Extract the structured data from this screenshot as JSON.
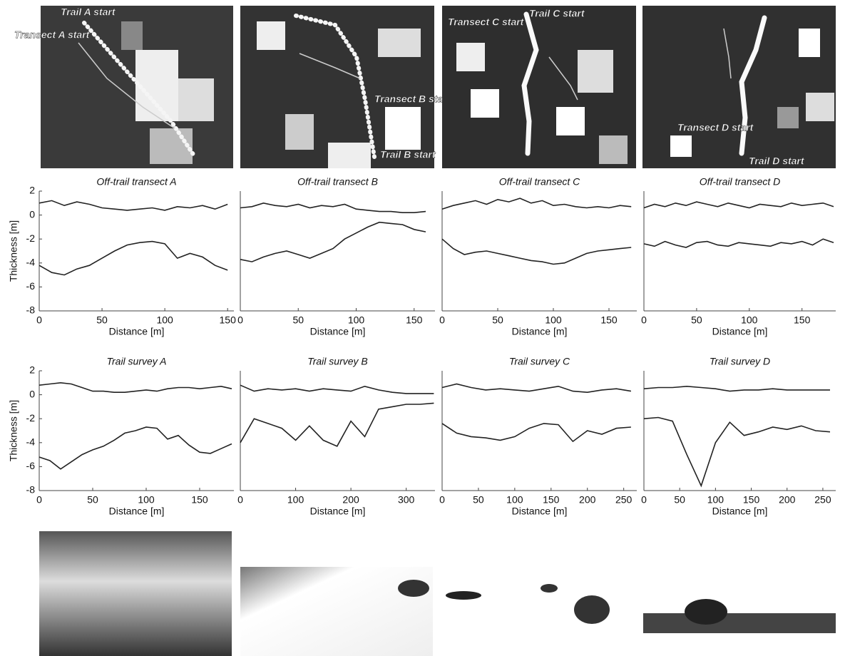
{
  "maps": [
    {
      "labels": [
        "Trail A start",
        "Transect A start"
      ]
    },
    {
      "labels": [
        "Transect B start",
        "Trail B start"
      ]
    },
    {
      "labels": [
        "Transect C start",
        "Trail C start"
      ]
    },
    {
      "labels": [
        "Transect D start",
        "Trail D start"
      ]
    }
  ],
  "chart_data": [
    {
      "type": "line",
      "title": "Off-trail transect A",
      "x_label": "Distance [m]",
      "y_label": "Thickness [m]",
      "x": [
        0,
        10,
        20,
        30,
        40,
        50,
        60,
        70,
        80,
        90,
        100,
        110,
        120,
        130,
        140,
        150
      ],
      "series": [
        {
          "color": "#222222",
          "values": [
            1,
            1.2,
            0.8,
            1.1,
            0.9,
            0.6,
            0.5,
            0.4,
            0.5,
            0.6,
            0.4,
            0.7,
            0.6,
            0.8,
            0.5,
            0.9
          ]
        },
        {
          "color": "#222222",
          "values": [
            -4.2,
            -4.8,
            -5,
            -4.5,
            -4.2,
            -3.6,
            -3,
            -2.5,
            -2.3,
            -2.2,
            -2.4,
            -3.6,
            -3.2,
            -3.5,
            -4.2,
            -4.6
          ]
        }
      ],
      "xlim": [
        0,
        155
      ],
      "xticks": [
        0,
        50,
        100,
        150
      ],
      "ylim": [
        -8,
        2
      ],
      "yticks": [
        2,
        0,
        -2,
        -4,
        -6,
        -8
      ]
    },
    {
      "type": "line",
      "title": "Off-trail transect B",
      "x_label": "Distance [m]",
      "x": [
        0,
        10,
        20,
        30,
        40,
        50,
        60,
        70,
        80,
        90,
        100,
        110,
        120,
        130,
        140,
        150,
        160
      ],
      "series": [
        {
          "color": "#222222",
          "values": [
            0.6,
            0.7,
            1,
            0.8,
            0.7,
            0.9,
            0.6,
            0.8,
            0.7,
            0.9,
            0.5,
            0.4,
            0.3,
            0.3,
            0.2,
            0.2,
            0.3
          ]
        },
        {
          "color": "#222222",
          "values": [
            -3.7,
            -3.9,
            -3.5,
            -3.2,
            -3,
            -3.3,
            -3.6,
            -3.2,
            -2.8,
            -2,
            -1.5,
            -1,
            -0.6,
            -0.7,
            -0.8,
            -1.2,
            -1.4
          ]
        }
      ],
      "xlim": [
        0,
        168
      ],
      "xticks": [
        0,
        50,
        100,
        150
      ],
      "ylim": [
        -8,
        2
      ]
    },
    {
      "type": "line",
      "title": "Off-trail transect C",
      "x_label": "Distance [m]",
      "x": [
        0,
        10,
        20,
        30,
        40,
        50,
        60,
        70,
        80,
        90,
        100,
        110,
        120,
        130,
        140,
        150,
        160,
        170
      ],
      "series": [
        {
          "color": "#222222",
          "values": [
            0.5,
            0.8,
            1,
            1.2,
            0.9,
            1.3,
            1.1,
            1.4,
            1,
            1.2,
            0.8,
            0.9,
            0.7,
            0.6,
            0.7,
            0.6,
            0.8,
            0.7
          ]
        },
        {
          "color": "#222222",
          "values": [
            -2,
            -2.8,
            -3.3,
            -3.1,
            -3,
            -3.2,
            -3.4,
            -3.6,
            -3.8,
            -3.9,
            -4.1,
            -4,
            -3.6,
            -3.2,
            -3,
            -2.9,
            -2.8,
            -2.7
          ]
        }
      ],
      "xlim": [
        0,
        175
      ],
      "xticks": [
        0,
        50,
        100,
        150
      ],
      "ylim": [
        -8,
        2
      ]
    },
    {
      "type": "line",
      "title": "Off-trail transect D",
      "x_label": "Distance [m]",
      "x": [
        0,
        10,
        20,
        30,
        40,
        50,
        60,
        70,
        80,
        90,
        100,
        110,
        120,
        130,
        140,
        150,
        160,
        170,
        180
      ],
      "series": [
        {
          "color": "#222222",
          "values": [
            0.6,
            0.9,
            0.7,
            1,
            0.8,
            1.1,
            0.9,
            0.7,
            1,
            0.8,
            0.6,
            0.9,
            0.8,
            0.7,
            1,
            0.8,
            0.9,
            1,
            0.7
          ]
        },
        {
          "color": "#222222",
          "values": [
            -2.4,
            -2.6,
            -2.2,
            -2.5,
            -2.7,
            -2.3,
            -2.2,
            -2.5,
            -2.6,
            -2.3,
            -2.4,
            -2.5,
            -2.6,
            -2.3,
            -2.4,
            -2.2,
            -2.5,
            -2,
            -2.3
          ]
        }
      ],
      "xlim": [
        0,
        182
      ],
      "xticks": [
        0,
        50,
        100,
        150
      ],
      "ylim": [
        -8,
        2
      ]
    },
    {
      "type": "line",
      "title": "Trail survey A",
      "x_label": "Distance [m]",
      "y_label": "Thickness [m]",
      "x": [
        0,
        10,
        20,
        30,
        40,
        50,
        60,
        70,
        80,
        90,
        100,
        110,
        120,
        130,
        140,
        150,
        160,
        170,
        180
      ],
      "series": [
        {
          "color": "#222222",
          "values": [
            0.8,
            0.9,
            1,
            0.9,
            0.6,
            0.3,
            0.3,
            0.2,
            0.2,
            0.3,
            0.4,
            0.3,
            0.5,
            0.6,
            0.6,
            0.5,
            0.6,
            0.7,
            0.5
          ]
        },
        {
          "color": "#222222",
          "values": [
            -5.2,
            -5.5,
            -6.2,
            -5.6,
            -5,
            -4.6,
            -4.3,
            -3.8,
            -3.2,
            -3,
            -2.7,
            -2.8,
            -3.7,
            -3.4,
            -4.2,
            -4.8,
            -4.9,
            -4.5,
            -4.1
          ]
        }
      ],
      "xlim": [
        0,
        182
      ],
      "xticks": [
        0,
        50,
        100,
        150
      ],
      "ylim": [
        -8,
        2
      ],
      "yticks": [
        2,
        0,
        -2,
        -4,
        -6,
        -8
      ]
    },
    {
      "type": "line",
      "title": "Trail survey B",
      "x_label": "Distance [m]",
      "x": [
        0,
        25,
        50,
        75,
        100,
        125,
        150,
        175,
        200,
        225,
        250,
        275,
        300,
        325,
        350
      ],
      "series": [
        {
          "color": "#222222",
          "values": [
            0.8,
            0.3,
            0.5,
            0.4,
            0.5,
            0.3,
            0.5,
            0.4,
            0.3,
            0.7,
            0.4,
            0.2,
            0.1,
            0.1,
            0.1
          ]
        },
        {
          "color": "#222222",
          "values": [
            -4,
            -2,
            -2.4,
            -2.8,
            -3.8,
            -2.6,
            -3.8,
            -4.3,
            -2.2,
            -3.5,
            -1.2,
            -1,
            -0.8,
            -0.8,
            -0.7
          ]
        }
      ],
      "xlim": [
        0,
        352
      ],
      "xticks": [
        0,
        100,
        200,
        300
      ],
      "ylim": [
        -8,
        2
      ]
    },
    {
      "type": "line",
      "title": "Trail survey C",
      "x_label": "Distance [m]",
      "x": [
        0,
        20,
        40,
        60,
        80,
        100,
        120,
        140,
        160,
        180,
        200,
        220,
        240,
        260
      ],
      "series": [
        {
          "color": "#222222",
          "values": [
            0.6,
            0.9,
            0.6,
            0.4,
            0.5,
            0.4,
            0.3,
            0.5,
            0.7,
            0.3,
            0.2,
            0.4,
            0.5,
            0.3
          ]
        },
        {
          "color": "#222222",
          "values": [
            -2.4,
            -3.2,
            -3.5,
            -3.6,
            -3.8,
            -3.5,
            -2.8,
            -2.4,
            -2.5,
            -3.9,
            -3,
            -3.3,
            -2.8,
            -2.7
          ]
        }
      ],
      "xlim": [
        0,
        268
      ],
      "xticks": [
        0,
        50,
        100,
        150,
        200,
        250
      ],
      "ylim": [
        -8,
        2
      ]
    },
    {
      "type": "line",
      "title": "Trail survey D",
      "x_label": "Distance [m]",
      "x": [
        0,
        20,
        40,
        60,
        80,
        100,
        120,
        140,
        160,
        180,
        200,
        220,
        240,
        260
      ],
      "series": [
        {
          "color": "#222222",
          "values": [
            0.5,
            0.6,
            0.6,
            0.7,
            0.6,
            0.5,
            0.3,
            0.4,
            0.4,
            0.5,
            0.4,
            0.4,
            0.4,
            0.4
          ]
        },
        {
          "color": "#222222",
          "values": [
            -2,
            -1.9,
            -2.2,
            -5,
            -7.6,
            -4,
            -2.3,
            -3.4,
            -3.1,
            -2.7,
            -2.9,
            -2.6,
            -3,
            -3.1
          ]
        }
      ],
      "xlim": [
        0,
        268
      ],
      "xticks": [
        0,
        50,
        100,
        150,
        200,
        250
      ],
      "ylim": [
        -8,
        2
      ]
    }
  ]
}
